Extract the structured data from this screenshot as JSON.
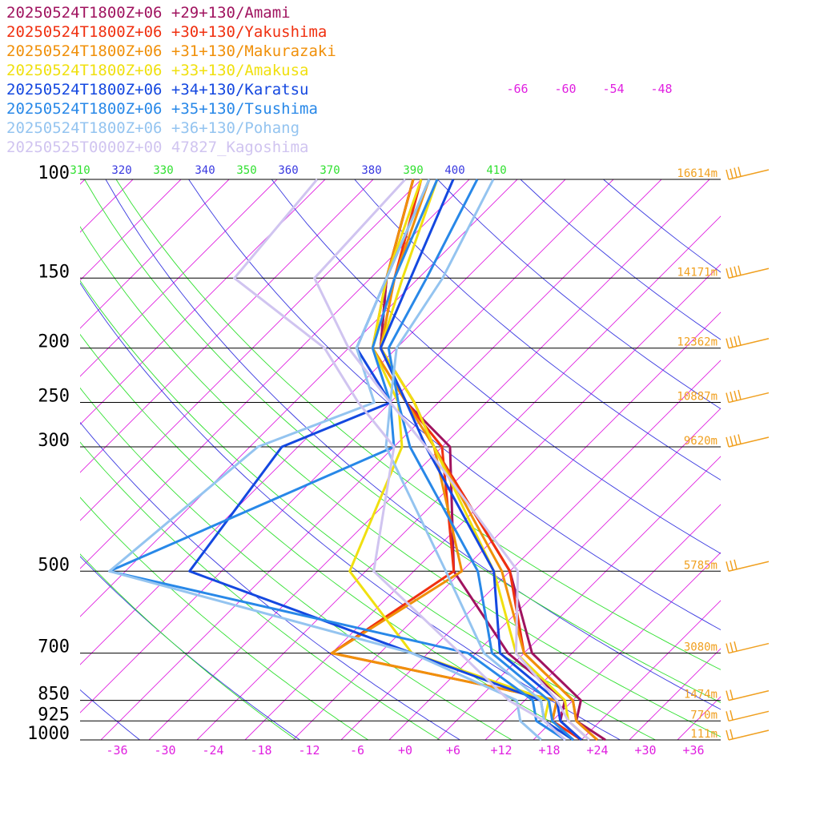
{
  "chart_data": {
    "type": "line",
    "title": "",
    "xlabel": "",
    "ylabel": "",
    "x_ticks": [
      "-36",
      "-30",
      "-24",
      "-18",
      "-12",
      "-6",
      "+0",
      "+6",
      "+12",
      "+18",
      "+24",
      "+30",
      "+36"
    ],
    "pressure_levels": [
      {
        "p": 100,
        "label": "100",
        "height": "16614m"
      },
      {
        "p": 150,
        "label": "150",
        "height": "14171m"
      },
      {
        "p": 200,
        "label": "200",
        "height": "12362m"
      },
      {
        "p": 250,
        "label": "250",
        "height": "10887m"
      },
      {
        "p": 300,
        "label": "300",
        "height": "9620m"
      },
      {
        "p": 500,
        "label": "500",
        "height": "5785m"
      },
      {
        "p": 700,
        "label": "700",
        "height": "3080m"
      },
      {
        "p": 850,
        "label": "850",
        "height": "1474m"
      },
      {
        "p": 925,
        "label": "925",
        "height": "770m"
      },
      {
        "p": 1000,
        "label": "1000",
        "height": "111m"
      }
    ],
    "theta_labels": [
      "310",
      "320",
      "330",
      "340",
      "350",
      "360",
      "370",
      "380",
      "390",
      "400",
      "410"
    ],
    "skewed_temp_labels": [
      "-66",
      "-60",
      "-54",
      "-48"
    ],
    "series": [
      {
        "name": "20250524T1800Z+06 +29+130/Amami",
        "color": "#a0135f",
        "temperature": [
          [
            1000,
            25
          ],
          [
            925,
            19
          ],
          [
            850,
            17
          ],
          [
            700,
            5
          ],
          [
            500,
            -8
          ],
          [
            300,
            -33
          ],
          [
            250,
            -41
          ],
          [
            200,
            -52
          ],
          [
            150,
            -60
          ],
          [
            100,
            -69
          ]
        ],
        "dewpoint": [
          [
            1000,
            22
          ],
          [
            925,
            17
          ],
          [
            850,
            15
          ],
          [
            700,
            2
          ],
          [
            500,
            -15
          ],
          [
            300,
            -31
          ],
          [
            250,
            -42
          ],
          [
            200,
            -52
          ],
          [
            150,
            -60
          ],
          [
            100,
            -69
          ]
        ]
      },
      {
        "name": "20250524T1800Z+06 +30+130/Yakushima",
        "color": "#f03010",
        "temperature": [
          [
            1000,
            24
          ],
          [
            925,
            19
          ],
          [
            850,
            16
          ],
          [
            700,
            4
          ],
          [
            500,
            -8
          ],
          [
            300,
            -33
          ],
          [
            250,
            -41
          ],
          [
            200,
            -52
          ],
          [
            150,
            -59
          ],
          [
            100,
            -68
          ]
        ],
        "dewpoint": [
          [
            1000,
            22
          ],
          [
            925,
            16
          ],
          [
            850,
            14
          ],
          [
            700,
            -20
          ],
          [
            500,
            -15
          ],
          [
            300,
            -32
          ],
          [
            250,
            -42
          ],
          [
            200,
            -53
          ],
          [
            150,
            -60
          ],
          [
            100,
            -69
          ]
        ]
      },
      {
        "name": "20250524T1800Z+06 +31+130/Makurazaki",
        "color": "#f0900a",
        "temperature": [
          [
            1000,
            24
          ],
          [
            925,
            19
          ],
          [
            850,
            16
          ],
          [
            700,
            4
          ],
          [
            500,
            -9
          ],
          [
            300,
            -33
          ],
          [
            250,
            -41
          ],
          [
            200,
            -52
          ],
          [
            150,
            -59
          ],
          [
            100,
            -67
          ]
        ],
        "dewpoint": [
          [
            1000,
            21
          ],
          [
            925,
            16
          ],
          [
            850,
            14
          ],
          [
            700,
            -20
          ],
          [
            500,
            -14
          ],
          [
            300,
            -33
          ],
          [
            250,
            -42
          ],
          [
            200,
            -53
          ],
          [
            150,
            -60
          ],
          [
            100,
            -69
          ]
        ]
      },
      {
        "name": "20250524T1800Z+06 +33+130/Amakusa",
        "color": "#f0e010",
        "temperature": [
          [
            1000,
            23
          ],
          [
            925,
            18
          ],
          [
            850,
            15
          ],
          [
            700,
            3
          ],
          [
            500,
            -10
          ],
          [
            300,
            -33
          ],
          [
            250,
            -41
          ],
          [
            200,
            -52
          ],
          [
            150,
            -58
          ],
          [
            100,
            -66
          ]
        ],
        "dewpoint": [
          [
            1000,
            21
          ],
          [
            925,
            15
          ],
          [
            850,
            13
          ],
          [
            700,
            -10
          ],
          [
            500,
            -28
          ],
          [
            300,
            -37
          ],
          [
            250,
            -43
          ],
          [
            200,
            -53
          ],
          [
            150,
            -60
          ],
          [
            100,
            -68
          ]
        ]
      },
      {
        "name": "20250524T1800Z+06 +34+130/Karatsu",
        "color": "#1448e0",
        "temperature": [
          [
            1000,
            22
          ],
          [
            925,
            17
          ],
          [
            850,
            14
          ],
          [
            700,
            1
          ],
          [
            500,
            -10
          ],
          [
            300,
            -34
          ],
          [
            250,
            -42
          ],
          [
            200,
            -52
          ],
          [
            150,
            -57
          ],
          [
            100,
            -64
          ]
        ],
        "dewpoint": [
          [
            1000,
            21
          ],
          [
            925,
            15
          ],
          [
            850,
            12
          ],
          [
            700,
            -10
          ],
          [
            500,
            -48
          ],
          [
            300,
            -52
          ],
          [
            250,
            -44
          ],
          [
            200,
            -55
          ],
          [
            150,
            -60
          ],
          [
            100,
            -67
          ]
        ]
      },
      {
        "name": "20250524T1800Z+06 +35+130/Tsushima",
        "color": "#2888e8",
        "temperature": [
          [
            1000,
            21
          ],
          [
            925,
            16
          ],
          [
            850,
            13
          ],
          [
            700,
            0
          ],
          [
            500,
            -12
          ],
          [
            300,
            -36
          ],
          [
            250,
            -43
          ],
          [
            200,
            -51
          ],
          [
            150,
            -55
          ],
          [
            100,
            -61
          ]
        ],
        "dewpoint": [
          [
            1000,
            20
          ],
          [
            925,
            14
          ],
          [
            850,
            11
          ],
          [
            700,
            -3
          ],
          [
            500,
            -58
          ],
          [
            300,
            -38
          ],
          [
            250,
            -44
          ],
          [
            200,
            -53
          ],
          [
            150,
            -59
          ],
          [
            100,
            -66
          ]
        ]
      },
      {
        "name": "20250524T1800Z+06 +36+130/Pohang",
        "color": "#94c4f0",
        "temperature": [
          [
            1000,
            20
          ],
          [
            925,
            15
          ],
          [
            850,
            12
          ],
          [
            700,
            -1
          ],
          [
            500,
            -16
          ],
          [
            300,
            -39
          ],
          [
            250,
            -44
          ],
          [
            200,
            -50
          ],
          [
            150,
            -53
          ],
          [
            100,
            -59
          ]
        ],
        "dewpoint": [
          [
            1000,
            17
          ],
          [
            925,
            12
          ],
          [
            850,
            9
          ],
          [
            700,
            -10
          ],
          [
            500,
            -58
          ],
          [
            300,
            -55
          ],
          [
            250,
            -46
          ],
          [
            200,
            -55
          ],
          [
            150,
            -60
          ],
          [
            100,
            -67
          ]
        ]
      },
      {
        "name": "20250525T0000Z+00 47827_Kagoshima",
        "color": "#d0c4f0",
        "temperature": [
          [
            1000,
            23
          ],
          [
            925,
            18
          ],
          [
            850,
            14
          ],
          [
            700,
            3
          ],
          [
            500,
            -7
          ],
          [
            300,
            -34
          ],
          [
            250,
            -44
          ],
          [
            200,
            -56
          ],
          [
            150,
            -69
          ],
          [
            100,
            -70
          ]
        ],
        "dewpoint": [
          [
            1000,
            20
          ],
          [
            925,
            15
          ],
          [
            850,
            8
          ],
          [
            700,
            -4
          ],
          [
            500,
            -25
          ],
          [
            300,
            -38
          ],
          [
            250,
            -48
          ],
          [
            200,
            -59
          ],
          [
            150,
            -79
          ],
          [
            100,
            -81
          ]
        ]
      }
    ],
    "wind_barb_color": "#f0a020",
    "grid": true
  }
}
